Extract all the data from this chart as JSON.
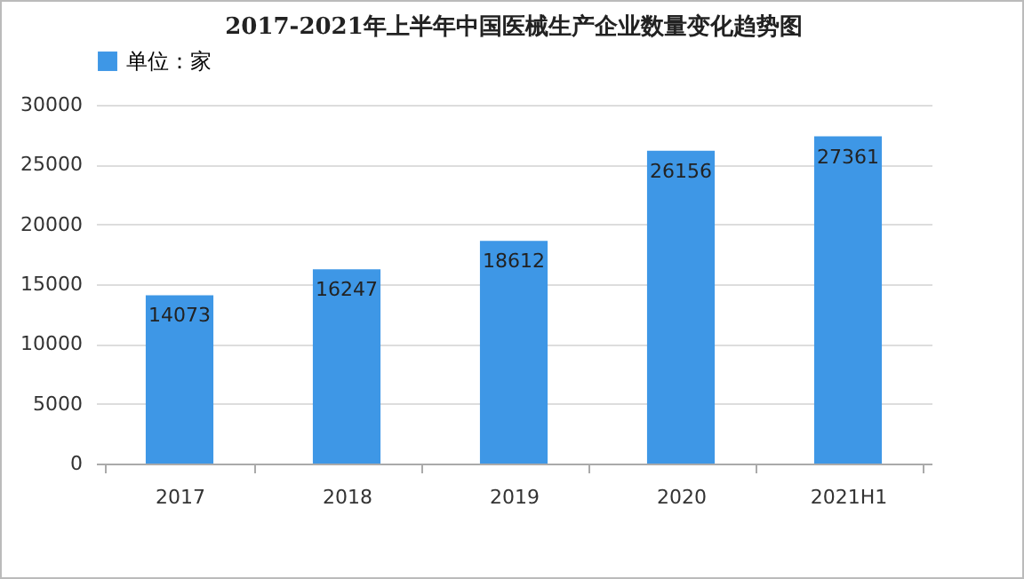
{
  "chart_data": {
    "type": "bar",
    "title": "2017-2021年上半年中国医械生产企业数量变化趋势图",
    "categories": [
      "2017",
      "2018",
      "2019",
      "2020",
      "2021H1"
    ],
    "series": [
      {
        "name": "单位：家",
        "color": "#3e97e6",
        "values": [
          14073,
          16247,
          18612,
          26156,
          27361
        ]
      }
    ],
    "ylim": [
      0,
      30000
    ],
    "yticks": [
      0,
      5000,
      10000,
      15000,
      20000,
      25000,
      30000
    ],
    "grid": "y",
    "legend": "top",
    "data_labels": true
  }
}
